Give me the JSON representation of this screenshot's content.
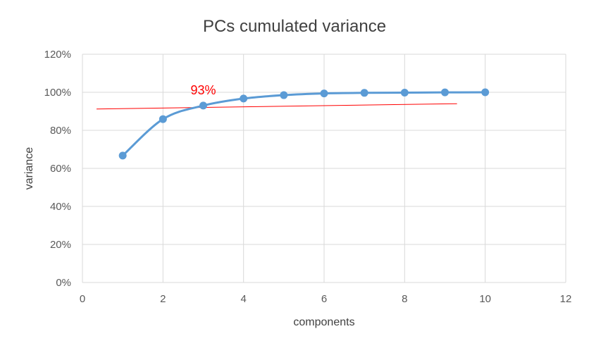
{
  "chart_data": {
    "type": "scatter",
    "title": "PCs cumulated variance",
    "xlabel": "components",
    "ylabel": "variance",
    "xlim": [
      0,
      12
    ],
    "ylim": [
      0,
      120
    ],
    "x_ticks": [
      0,
      2,
      4,
      6,
      8,
      10,
      12
    ],
    "y_ticks": [
      0,
      20,
      40,
      60,
      80,
      100,
      120
    ],
    "y_tick_labels": [
      "0%",
      "20%",
      "40%",
      "60%",
      "80%",
      "100%",
      "120%"
    ],
    "x_tick_labels": [
      "0",
      "2",
      "4",
      "6",
      "8",
      "10",
      "12"
    ],
    "grid": true,
    "smoothed_line": true,
    "series": [
      {
        "color": "#5b9bd5",
        "x": [
          1,
          2,
          3,
          4,
          5,
          6,
          7,
          8,
          9,
          10
        ],
        "y": [
          66.7,
          85.9,
          93.0,
          96.7,
          98.5,
          99.4,
          99.7,
          99.8,
          99.95,
          100
        ]
      }
    ],
    "reference_line": {
      "color": "#ff0000",
      "from": {
        "x": 0.35,
        "y": 91.2
      },
      "to": {
        "x": 9.3,
        "y": 94.0
      }
    },
    "annotations": [
      {
        "text": "93%",
        "x": 3,
        "y": 93,
        "color": "#ff0000"
      }
    ]
  }
}
